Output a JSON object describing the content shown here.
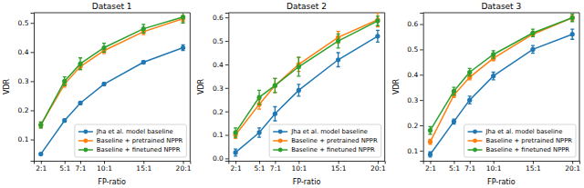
{
  "chart_data": [
    {
      "type": "line",
      "title": "Dataset 1",
      "x_label": "FP-ratio",
      "y_label": "VDR",
      "x": [
        2,
        5,
        7,
        10,
        15,
        20
      ],
      "xlim": [
        1.1,
        20.9
      ],
      "xticks": [
        {
          "value": 2,
          "label": "2:1"
        },
        {
          "value": 5,
          "label": "5:1"
        },
        {
          "value": 7,
          "label": "7:1"
        },
        {
          "value": 10,
          "label": "10:1"
        },
        {
          "value": 15,
          "label": "15:1"
        },
        {
          "value": 20,
          "label": "20:1"
        }
      ],
      "ylim": [
        0.027,
        0.535
      ],
      "yticks": [
        0.1,
        0.2,
        0.3,
        0.4,
        0.5
      ],
      "legend": "lower right",
      "series": [
        {
          "name": "Jha et al. model baseline",
          "color": "#1f77b4",
          "marker": "o",
          "values": [
            0.05,
            0.165,
            0.225,
            0.29,
            0.365,
            0.415
          ],
          "errors": [
            0.003,
            0.005,
            0.005,
            0.005,
            0.005,
            0.01
          ]
        },
        {
          "name": "Baseline + pretrained NPPR",
          "color": "#ff7f0e",
          "marker": "o",
          "values": [
            0.15,
            0.29,
            0.35,
            0.405,
            0.47,
            0.515
          ],
          "errors": [
            0.01,
            0.01,
            0.01,
            0.01,
            0.01,
            0.01
          ]
        },
        {
          "name": "Baseline + finetuned NPPR",
          "color": "#2ca02c",
          "marker": "o",
          "values": [
            0.15,
            0.3,
            0.36,
            0.415,
            0.48,
            0.52
          ],
          "errors": [
            0.01,
            0.015,
            0.02,
            0.015,
            0.015,
            0.02
          ]
        }
      ]
    },
    {
      "type": "line",
      "title": "Dataset 2",
      "x_label": "FP-ratio",
      "y_label": "VDR",
      "x": [
        2,
        5,
        7,
        10,
        15,
        20
      ],
      "xlim": [
        1.1,
        20.9
      ],
      "xticks": [
        {
          "value": 2,
          "label": "2:1"
        },
        {
          "value": 5,
          "label": "5:1"
        },
        {
          "value": 7,
          "label": "7:1"
        },
        {
          "value": 10,
          "label": "10:1"
        },
        {
          "value": 15,
          "label": "15:1"
        },
        {
          "value": 20,
          "label": "20:1"
        }
      ],
      "ylim": [
        -0.01,
        0.62
      ],
      "yticks": [
        {
          "value": 0,
          "label": "0.0"
        },
        0.1,
        0.2,
        0.3,
        0.4,
        0.5,
        0.6
      ],
      "legend": "lower right",
      "series": [
        {
          "name": "Jha et al. model baseline",
          "color": "#1f77b4",
          "marker": "o",
          "values": [
            0.025,
            0.11,
            0.19,
            0.29,
            0.42,
            0.52
          ],
          "errors": [
            0.015,
            0.02,
            0.03,
            0.025,
            0.03,
            0.025
          ]
        },
        {
          "name": "Baseline + pretrained NPPR",
          "color": "#ff7f0e",
          "marker": "o",
          "values": [
            0.1,
            0.23,
            0.31,
            0.4,
            0.515,
            0.59
          ],
          "errors": [
            0.015,
            0.02,
            0.03,
            0.03,
            0.025,
            0.03
          ]
        },
        {
          "name": "Baseline + finetuned NPPR",
          "color": "#2ca02c",
          "marker": "o",
          "values": [
            0.11,
            0.26,
            0.31,
            0.39,
            0.5,
            0.585
          ],
          "errors": [
            0.02,
            0.03,
            0.03,
            0.04,
            0.03,
            0.02
          ]
        }
      ]
    },
    {
      "type": "line",
      "title": "Dataset 3",
      "x_label": "FP-ratio",
      "y_label": "VDR",
      "x": [
        2,
        5,
        7,
        10,
        15,
        20
      ],
      "xlim": [
        1.1,
        20.9
      ],
      "xticks": [
        {
          "value": 2,
          "label": "2:1"
        },
        {
          "value": 5,
          "label": "5:1"
        },
        {
          "value": 7,
          "label": "7:1"
        },
        {
          "value": 10,
          "label": "10:1"
        },
        {
          "value": 15,
          "label": "15:1"
        },
        {
          "value": 20,
          "label": "20:1"
        }
      ],
      "ylim": [
        0.06,
        0.645
      ],
      "yticks": [
        0.1,
        0.2,
        0.3,
        0.4,
        0.5,
        0.6
      ],
      "legend": "lower right",
      "series": [
        {
          "name": "Jha et al. model baseline",
          "color": "#1f77b4",
          "marker": "o",
          "values": [
            0.085,
            0.215,
            0.3,
            0.395,
            0.5,
            0.56
          ],
          "errors": [
            0.01,
            0.01,
            0.015,
            0.015,
            0.015,
            0.02
          ]
        },
        {
          "name": "Baseline + pretrained NPPR",
          "color": "#ff7f0e",
          "marker": "o",
          "values": [
            0.135,
            0.32,
            0.39,
            0.465,
            0.56,
            0.625
          ],
          "errors": [
            0.01,
            0.01,
            0.01,
            0.01,
            0.01,
            0.01
          ]
        },
        {
          "name": "Baseline + finetuned NPPR",
          "color": "#2ca02c",
          "marker": "o",
          "values": [
            0.18,
            0.335,
            0.41,
            0.48,
            0.565,
            0.625
          ],
          "errors": [
            0.015,
            0.015,
            0.015,
            0.015,
            0.015,
            0.015
          ]
        }
      ]
    }
  ]
}
